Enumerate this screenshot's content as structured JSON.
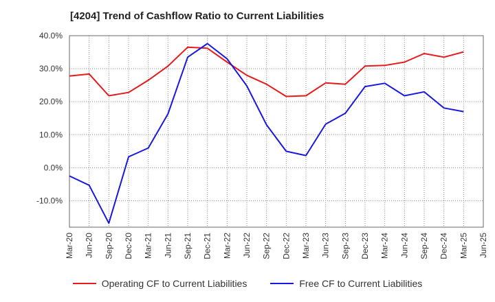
{
  "chart_data": {
    "type": "line",
    "title": "[4204]  Trend of Cashflow Ratio to Current Liabilities",
    "xlabel": "",
    "ylabel": "",
    "ylim": [
      -18,
      40
    ],
    "y_ticks": [
      "40.0%",
      "30.0%",
      "20.0%",
      "10.0%",
      "0.0%",
      "-10.0%"
    ],
    "y_tick_values": [
      40,
      30,
      20,
      10,
      0,
      -10
    ],
    "x_tick_labels": [
      "Mar-20",
      "Jun-20",
      "Sep-20",
      "Dec-20",
      "Mar-21",
      "Jun-21",
      "Sep-21",
      "Dec-21",
      "Mar-22",
      "Jun-22",
      "Sep-22",
      "Dec-22",
      "Mar-23",
      "Jun-23",
      "Sep-23",
      "Dec-23",
      "Mar-24",
      "Jun-24",
      "Sep-24",
      "Dec-24",
      "Mar-25",
      "Jun-25"
    ],
    "grid": true,
    "legend_position": "bottom",
    "series": [
      {
        "name": "Operating CF to Current Liabilities",
        "color": "#e8191b",
        "values": [
          27.8,
          28.4,
          21.8,
          22.8,
          26.5,
          30.8,
          36.5,
          36.2,
          32.0,
          28.0,
          25.3,
          21.6,
          21.8,
          25.7,
          25.3,
          30.8,
          31.0,
          32.0,
          34.6,
          33.5,
          35.1,
          null
        ]
      },
      {
        "name": "Free CF to Current Liabilities",
        "color": "#1717e3",
        "values": [
          -2.5,
          -5.3,
          -16.8,
          3.3,
          6.0,
          16.3,
          33.5,
          37.6,
          33.0,
          24.8,
          13.0,
          5.0,
          3.7,
          13.2,
          16.5,
          24.6,
          25.6,
          21.8,
          23.0,
          18.1,
          17.0,
          null
        ]
      }
    ]
  }
}
